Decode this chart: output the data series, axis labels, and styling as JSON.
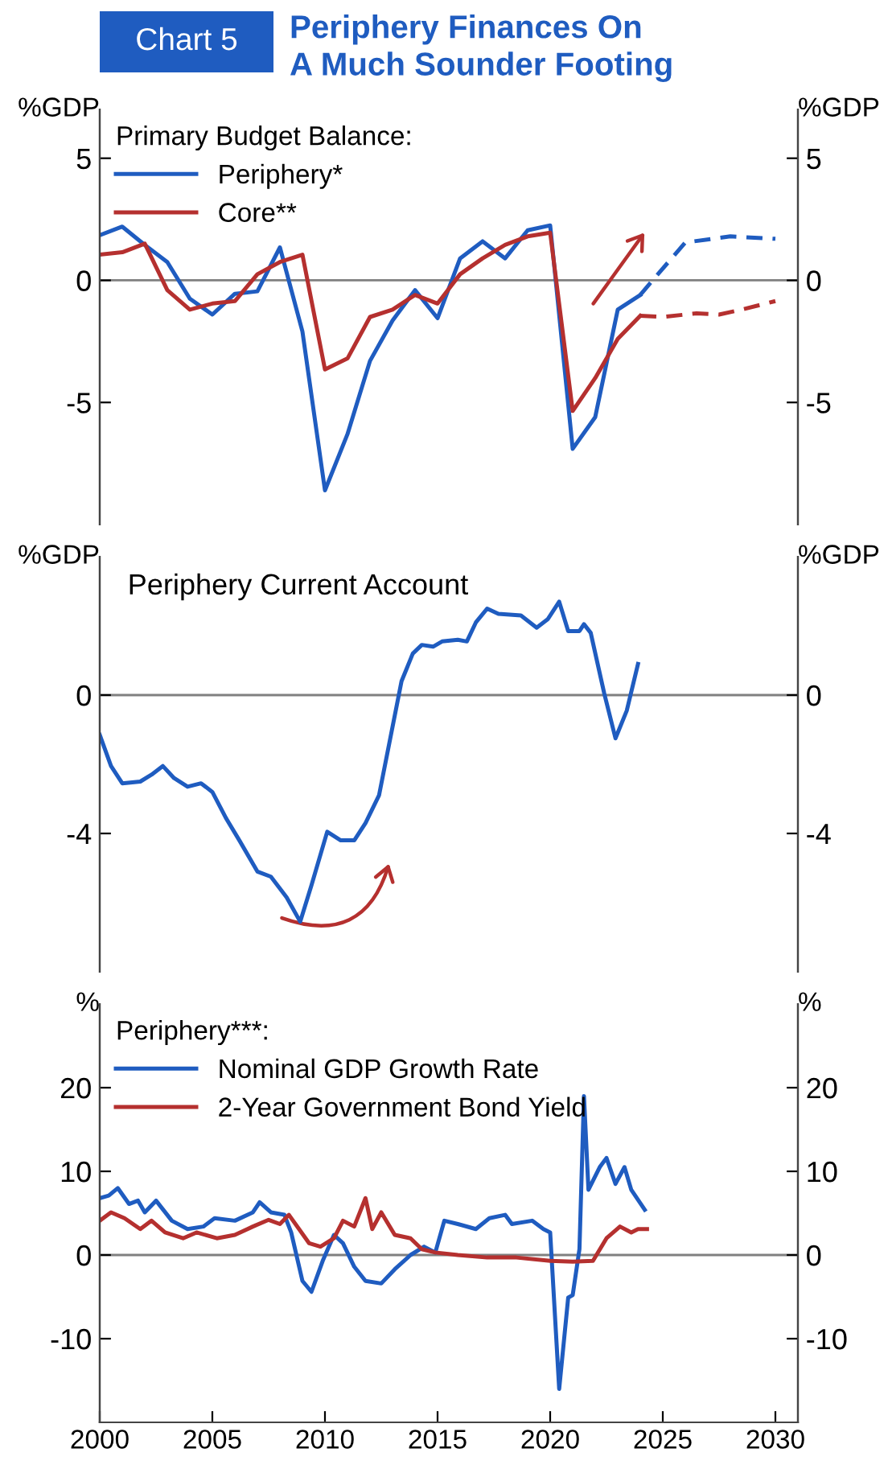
{
  "chart_data": [
    {
      "type": "line",
      "title": "Periphery Finances On\nA Much Sounder Footing",
      "annotations": [
        "Chart 5"
      ],
      "ylabel": "%GDP",
      "y2label": "%GDP",
      "legend_title": "Primary Budget Balance:",
      "legend": "top left",
      "tick_labels": "y",
      "xlim": [
        2000,
        2031
      ],
      "ylim": [
        -10,
        7
      ],
      "yticks": [
        -5,
        0,
        5
      ],
      "y2lim": [
        -10,
        7
      ],
      "y2ticks": [
        -5,
        0,
        5
      ],
      "ref_lines": [
        {
          "axis": "y",
          "value": 0,
          "color": "#808080"
        }
      ],
      "series": [
        {
          "name": "Periphery*",
          "color": "#1f5cc0",
          "x": [
            2000,
            2001,
            2002,
            2003,
            2004,
            2005,
            2006,
            2007,
            2008,
            2009,
            2010,
            2011,
            2012,
            2013,
            2014,
            2015,
            2016,
            2017,
            2018,
            2019,
            2020,
            2021,
            2022,
            2023,
            2024
          ],
          "values": [
            1.85,
            2.2,
            1.45,
            0.75,
            -0.75,
            -1.4,
            -0.55,
            -0.45,
            1.35,
            -2.1,
            -8.6,
            -6.3,
            -3.3,
            -1.65,
            -0.4,
            -1.55,
            0.9,
            1.6,
            0.9,
            2.05,
            2.25,
            -6.9,
            -5.6,
            -1.2,
            -0.6
          ]
        },
        {
          "color": "#1f5cc0",
          "line_style": "dashed",
          "x": [
            2024,
            2024.5,
            2026,
            2028,
            2030
          ],
          "values": [
            -0.6,
            -0.05,
            1.55,
            1.8,
            1.7
          ]
        },
        {
          "name": "Core**",
          "color": "#b5302f",
          "x": [
            2000,
            2001,
            2002,
            2003,
            2004,
            2005,
            2006,
            2007,
            2008,
            2009,
            2010,
            2011,
            2012,
            2013,
            2014,
            2015,
            2016,
            2017,
            2018,
            2019,
            2020,
            2021,
            2022,
            2023,
            2024
          ],
          "values": [
            1.05,
            1.15,
            1.5,
            -0.4,
            -1.2,
            -0.95,
            -0.85,
            0.25,
            0.75,
            1.05,
            -3.65,
            -3.2,
            -1.5,
            -1.2,
            -0.6,
            -0.95,
            0.25,
            0.9,
            1.45,
            1.8,
            1.95,
            -5.35,
            -4.0,
            -2.4,
            -1.45
          ]
        },
        {
          "color": "#b5302f",
          "line_style": "dashed",
          "x": [
            2024,
            2025,
            2026.5,
            2027.5,
            2028.5,
            2030
          ],
          "values": [
            -1.45,
            -1.5,
            -1.35,
            -1.4,
            -1.2,
            -0.85
          ]
        }
      ]
    },
    {
      "type": "line",
      "title": "Periphery Current Account",
      "ylabel": "%GDP",
      "y2label": "%GDP",
      "tick_labels": "y",
      "xlim": [
        2000,
        2031
      ],
      "ylim": [
        -8,
        4
      ],
      "yticks": [
        -4,
        0
      ],
      "y2lim": [
        -8,
        4
      ],
      "y2ticks": [
        -4,
        0
      ],
      "ref_lines": [
        {
          "axis": "y",
          "value": 0,
          "color": "#808080"
        }
      ],
      "series": [
        {
          "color": "#1f5cc0",
          "x": [
            2000,
            2000.5,
            2001,
            2001.8,
            2002.3,
            2002.8,
            2003.3,
            2003.9,
            2004.5,
            2005,
            2005.6,
            2006.2,
            2007,
            2007.6,
            2008.3,
            2008.9,
            2009.4,
            2010.1,
            2010.7,
            2011.3,
            2011.8,
            2012.4,
            2012.9,
            2013.4,
            2013.9,
            2014.3,
            2014.8,
            2015.2,
            2015.9,
            2016.3,
            2016.7,
            2017.2,
            2017.7,
            2018.7,
            2019.4,
            2019.9,
            2020.4,
            2020.8,
            2021.3,
            2021.5,
            2021.8,
            2022.4,
            2022.9,
            2023.4,
            2023.9
          ],
          "values": [
            -1.15,
            -2.05,
            -2.55,
            -2.5,
            -2.3,
            -2.05,
            -2.4,
            -2.65,
            -2.55,
            -2.8,
            -3.55,
            -4.2,
            -5.1,
            -5.25,
            -5.85,
            -6.55,
            -5.5,
            -3.95,
            -4.2,
            -4.2,
            -3.7,
            -2.9,
            -1.25,
            0.4,
            1.2,
            1.45,
            1.4,
            1.55,
            1.6,
            1.55,
            2.1,
            2.5,
            2.35,
            2.3,
            1.95,
            2.2,
            2.7,
            1.85,
            1.85,
            2.05,
            1.8,
            0.05,
            -1.25,
            -0.45,
            0.9
          ]
        }
      ]
    },
    {
      "type": "line",
      "ylabel": "%",
      "y2label": "%",
      "legend_title": "Periphery***:",
      "legend": "top left",
      "xlim": [
        2000,
        2031
      ],
      "xticks": [
        2000,
        2005,
        2010,
        2015,
        2020,
        2025,
        2030
      ],
      "ylim": [
        -20,
        30
      ],
      "yticks": [
        -10,
        0,
        10,
        20
      ],
      "y2lim": [
        -20,
        30
      ],
      "y2ticks": [
        -10,
        0,
        10,
        20
      ],
      "ref_lines": [
        {
          "axis": "y",
          "value": 0,
          "color": "#808080"
        }
      ],
      "series": [
        {
          "name": "Nominal GDP Growth Rate",
          "color": "#1f5cc0",
          "x": [
            2000,
            2000.4,
            2000.8,
            2001.3,
            2001.7,
            2002.0,
            2002.5,
            2003.2,
            2003.9,
            2004.6,
            2005.1,
            2006.0,
            2006.8,
            2007.1,
            2007.6,
            2008.2,
            2008.5,
            2009.0,
            2009.4,
            2009.9,
            2010.4,
            2010.8,
            2011.3,
            2011.8,
            2012.5,
            2013.1,
            2013.8,
            2014.4,
            2014.9,
            2015.3,
            2015.9,
            2016.7,
            2017.3,
            2018.0,
            2018.3,
            2019.2,
            2019.7,
            2020.0,
            2020.4,
            2020.8,
            2021.0,
            2021.3,
            2021.5,
            2021.7,
            2022.2,
            2022.5,
            2022.9,
            2023.3,
            2023.6,
            2024.2
          ],
          "values": [
            6.8,
            7.1,
            8.0,
            6.1,
            6.5,
            5.1,
            6.5,
            4.1,
            3.1,
            3.4,
            4.4,
            4.1,
            5.1,
            6.3,
            5.1,
            4.8,
            2.7,
            -3.1,
            -4.4,
            -0.7,
            2.4,
            1.4,
            -1.4,
            -3.1,
            -3.4,
            -1.7,
            0,
            1.0,
            0.3,
            4.1,
            3.7,
            3.1,
            4.4,
            4.8,
            3.7,
            4.1,
            3.1,
            2.7,
            -16.0,
            -5.1,
            -4.8,
            0.7,
            19.0,
            7.8,
            10.5,
            11.6,
            8.5,
            10.5,
            7.8,
            5.4
          ]
        },
        {
          "name": "2-Year Government Bond Yield",
          "color": "#b5302f",
          "x": [
            2000,
            2000.5,
            2001.1,
            2001.8,
            2002.3,
            2002.9,
            2003.7,
            2004.3,
            2005.2,
            2006.0,
            2006.8,
            2007.5,
            2008.0,
            2008.4,
            2009.3,
            2009.8,
            2010.4,
            2010.8,
            2011.3,
            2011.8,
            2012.1,
            2012.5,
            2013.1,
            2013.8,
            2014.3,
            2014.9,
            2015.9,
            2017.2,
            2018.5,
            2020.0,
            2021.0,
            2021.9,
            2022.5,
            2023.1,
            2023.6,
            2023.9,
            2024.3
          ],
          "values": [
            4.1,
            5.1,
            4.4,
            3.1,
            4.1,
            2.7,
            2.0,
            2.7,
            2.0,
            2.4,
            3.4,
            4.2,
            3.7,
            4.8,
            1.4,
            1.0,
            2.0,
            4.1,
            3.4,
            6.8,
            3.1,
            5.1,
            2.4,
            2.0,
            0.7,
            0.3,
            0,
            -0.3,
            -0.3,
            -0.7,
            -0.8,
            -0.7,
            2.0,
            3.4,
            2.7,
            3.1,
            3.1
          ]
        }
      ]
    }
  ]
}
